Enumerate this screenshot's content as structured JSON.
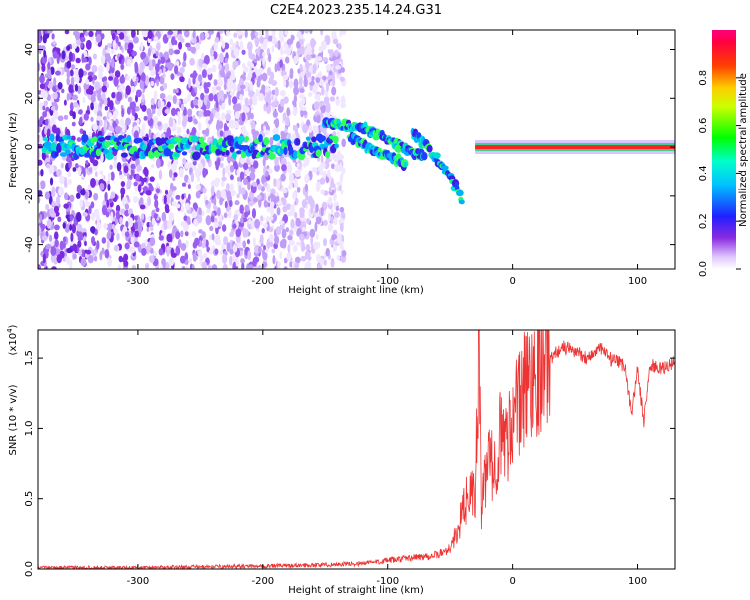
{
  "figure": {
    "title": "C2E4.2023.235.14.24.G31"
  },
  "chart_data": [
    {
      "type": "heatmap",
      "xlabel": "Height of straight line (km)",
      "ylabel": "Frequency (Hz)",
      "xlim": [
        -380,
        130
      ],
      "ylim": [
        -50,
        48
      ],
      "xticks": [
        -300,
        -200,
        -100,
        0,
        100
      ],
      "xtick_labels": [
        "-300",
        "-200",
        "-100",
        "0",
        "100"
      ],
      "yticks": [
        -40,
        -20,
        0,
        20,
        40
      ],
      "ytick_labels": [
        "-40",
        "-20",
        "0",
        "20",
        "40"
      ],
      "colorbar": {
        "label": "Normalized spectral amplitude",
        "range": [
          0,
          1
        ],
        "ticks": [
          0.0,
          0.2,
          0.4,
          0.6,
          0.8
        ],
        "tick_labels": [
          "0.0",
          "0.2",
          "0.4",
          "0.6",
          "0.8"
        ],
        "colormap": "rainbow: white-purple-blue-cyan-green-yellow-red-magenta"
      },
      "features": [
        {
          "name": "noise region",
          "x_range": [
            -380,
            -135
          ],
          "freq_range": [
            -50,
            48
          ]
        },
        {
          "name": "main band",
          "points": [
            [
              -375,
              0
            ],
            [
              -300,
              0
            ],
            [
              -200,
              0
            ],
            [
              -140,
              0
            ]
          ]
        },
        {
          "name": "descending track 1",
          "points": [
            [
              -150,
              10
            ],
            [
              -120,
              8
            ],
            [
              -100,
              3
            ],
            [
              -80,
              -2
            ],
            [
              -70,
              -4
            ]
          ]
        },
        {
          "name": "descending track 2",
          "points": [
            [
              -130,
              4
            ],
            [
              -110,
              -2
            ],
            [
              -85,
              -7
            ]
          ]
        },
        {
          "name": "descending track 3",
          "points": [
            [
              -80,
              6
            ],
            [
              -65,
              -2
            ],
            [
              -50,
              -12
            ],
            [
              -40,
              -22
            ]
          ]
        },
        {
          "name": "stable line",
          "points": [
            [
              -30,
              0
            ],
            [
              0,
              0
            ],
            [
              50,
              0
            ],
            [
              130,
              0
            ]
          ]
        }
      ]
    },
    {
      "type": "line",
      "xlabel": "Height of straight line (km)",
      "ylabel": "SNR (10 * v/v)",
      "y_multiplier": "(x10",
      "y_multiplier_exp": "4",
      "y_multiplier_close": ")",
      "xlim": [
        -380,
        130
      ],
      "ylim": [
        0,
        1.7
      ],
      "xticks": [
        -300,
        -200,
        -100,
        0,
        100
      ],
      "xtick_labels": [
        "-300",
        "-200",
        "-100",
        "0",
        "100"
      ],
      "yticks": [
        0.0,
        0.5,
        1.0,
        1.5
      ],
      "ytick_labels": [
        "0.0",
        "0.5",
        "1.0",
        "1.5"
      ],
      "series": [
        {
          "color": "#ee3333",
          "x": [
            -380,
            -300,
            -250,
            -200,
            -150,
            -120,
            -100,
            -80,
            -60,
            -50,
            -45,
            -40,
            -35,
            -30,
            -27,
            -25,
            -20,
            -15,
            -10,
            -5,
            0,
            5,
            10,
            20,
            30,
            40,
            50,
            60,
            70,
            80,
            90,
            95,
            100,
            105,
            110,
            120,
            130
          ],
          "values": [
            0.01,
            0.01,
            0.015,
            0.02,
            0.03,
            0.04,
            0.06,
            0.08,
            0.1,
            0.15,
            0.25,
            0.4,
            0.55,
            0.5,
            1.6,
            0.4,
            0.8,
            0.7,
            0.95,
            0.9,
            1.1,
            1.15,
            1.3,
            1.45,
            1.5,
            1.58,
            1.55,
            1.5,
            1.57,
            1.48,
            1.45,
            1.1,
            1.42,
            1.05,
            1.45,
            1.42,
            1.48
          ]
        }
      ]
    }
  ]
}
